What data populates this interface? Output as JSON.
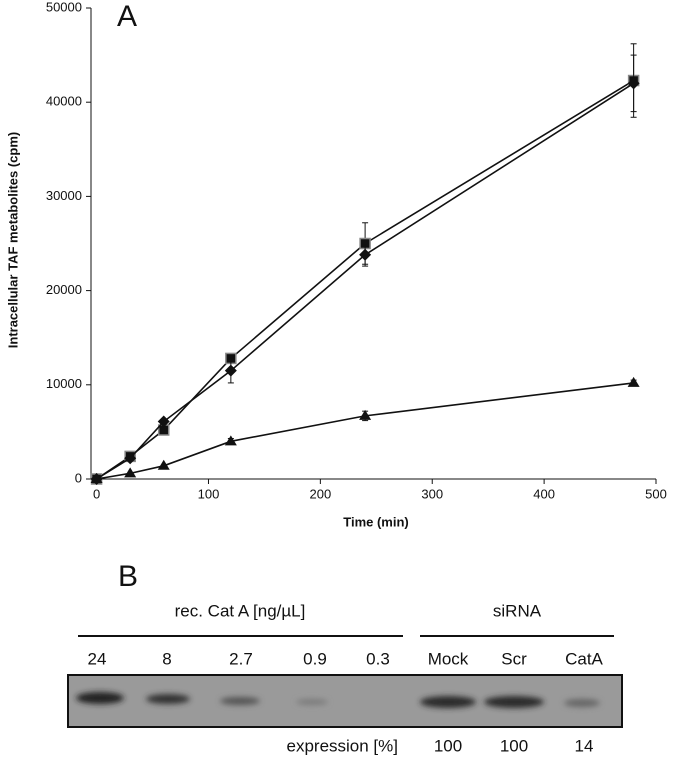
{
  "chart_data": {
    "type": "line",
    "panel_label": "A",
    "x_label": "Time (min)",
    "y_label": "Intracellular  TAF metabolites (cpm)",
    "xlim": [
      -5,
      500
    ],
    "xticks": [
      0,
      100,
      200,
      300,
      400,
      500
    ],
    "ylim": [
      0,
      50000
    ],
    "yticks": [
      0,
      10000,
      20000,
      30000,
      40000,
      50000
    ],
    "series": [
      {
        "marker": "square",
        "color": "#111111",
        "x": [
          0,
          30,
          60,
          120,
          240,
          480
        ],
        "values": [
          0,
          2400,
          5200,
          12800,
          25000,
          42300
        ],
        "errors": [
          null,
          null,
          null,
          null,
          2200,
          3900
        ]
      },
      {
        "marker": "diamond",
        "color": "#111111",
        "x": [
          0,
          30,
          60,
          120,
          240,
          480
        ],
        "values": [
          0,
          2200,
          6100,
          11500,
          23800,
          42000
        ],
        "errors": [
          null,
          null,
          null,
          1300,
          1200,
          3000
        ]
      },
      {
        "marker": "triangle",
        "color": "#111111",
        "x": [
          0,
          30,
          60,
          120,
          240,
          480
        ],
        "values": [
          0,
          600,
          1400,
          4000,
          6700,
          10200
        ],
        "errors": [
          null,
          null,
          null,
          300,
          500,
          300
        ]
      }
    ]
  },
  "panel_b": {
    "panel_label": "B",
    "groups": [
      "rec. Cat A [ng/µL]",
      "siRNA"
    ],
    "lanes": [
      "24",
      "8",
      "2.7",
      "0.9",
      "0.3",
      "Mock",
      "Scr",
      "CatA"
    ],
    "expression_label": "expression [%]",
    "expression": [
      "100",
      "100",
      "14"
    ]
  }
}
